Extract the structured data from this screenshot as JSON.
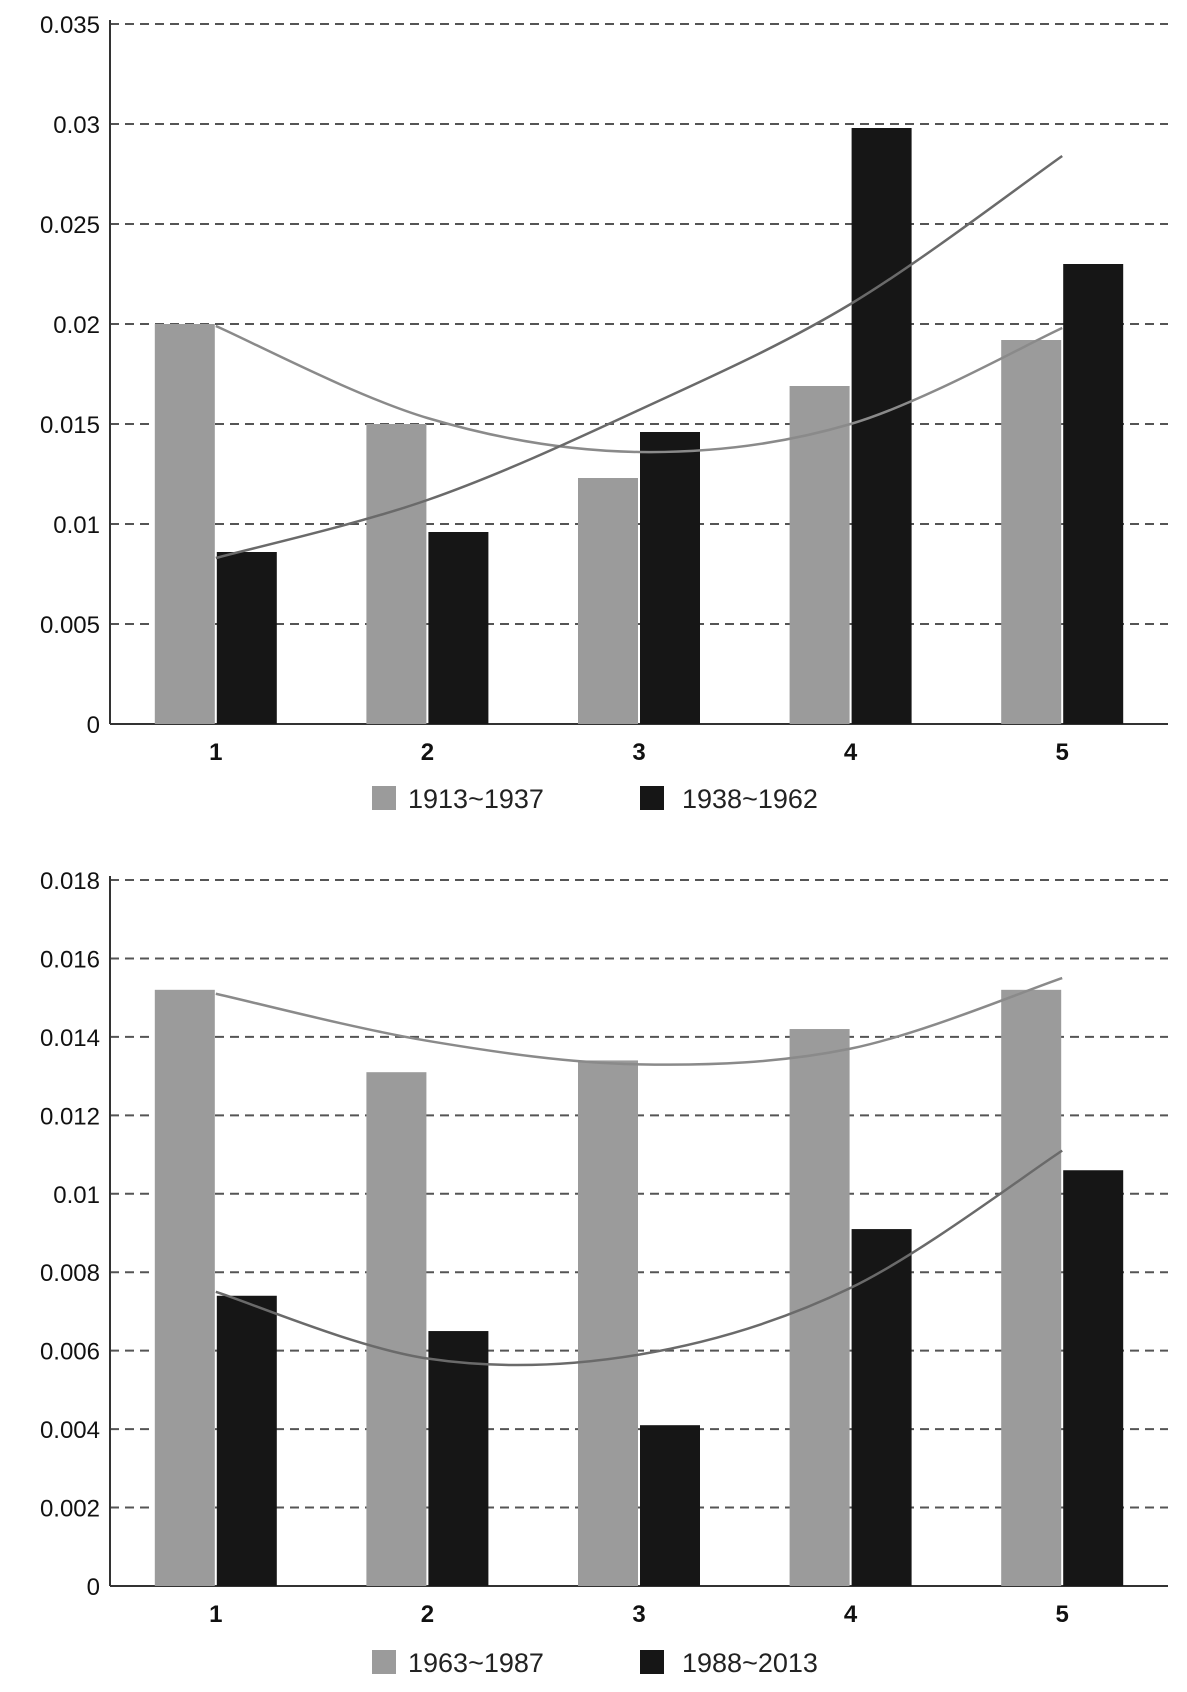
{
  "chart_data": [
    {
      "type": "bar",
      "categories": [
        "1",
        "2",
        "3",
        "4",
        "5"
      ],
      "ylim": [
        0,
        0.035
      ],
      "yticks": [
        "0",
        "0.005",
        "0.01",
        "0.015",
        "0.02",
        "0.025",
        "0.03",
        "0.035"
      ],
      "grid": true,
      "legend_position": "bottom",
      "series": [
        {
          "name": "1913~1937",
          "color": "#9b9b9b",
          "values": [
            0.02,
            0.015,
            0.0123,
            0.0169,
            0.0192
          ]
        },
        {
          "name": "1938~1962",
          "color": "#161616",
          "values": [
            0.0086,
            0.0096,
            0.0146,
            0.0298,
            0.023
          ]
        }
      ],
      "trendlines": [
        {
          "series": "1913~1937",
          "kind": "polynomial",
          "values": [
            0.0199,
            0.0153,
            0.0136,
            0.015,
            0.0198
          ]
        },
        {
          "series": "1938~1962",
          "kind": "polynomial",
          "values": [
            0.0083,
            0.0112,
            0.0157,
            0.021,
            0.0284
          ]
        }
      ]
    },
    {
      "type": "bar",
      "categories": [
        "1",
        "2",
        "3",
        "4",
        "5"
      ],
      "ylim": [
        0,
        0.018
      ],
      "yticks": [
        "0",
        "0.002",
        "0.004",
        "0.006",
        "0.008",
        "0.01",
        "0.012",
        "0.014",
        "0.016",
        "0.018"
      ],
      "grid": true,
      "legend_position": "bottom",
      "series": [
        {
          "name": "1963~1987",
          "color": "#9b9b9b",
          "values": [
            0.0152,
            0.0131,
            0.0134,
            0.0142,
            0.0152
          ]
        },
        {
          "name": "1988~2013",
          "color": "#161616",
          "values": [
            0.0074,
            0.0065,
            0.0041,
            0.0091,
            0.0106
          ]
        }
      ],
      "trendlines": [
        {
          "series": "1963~1987",
          "kind": "polynomial",
          "values": [
            0.0151,
            0.0139,
            0.0133,
            0.0137,
            0.0155
          ]
        },
        {
          "series": "1988~2013",
          "kind": "polynomial",
          "values": [
            0.0075,
            0.0058,
            0.0059,
            0.0076,
            0.0111
          ]
        }
      ]
    }
  ]
}
